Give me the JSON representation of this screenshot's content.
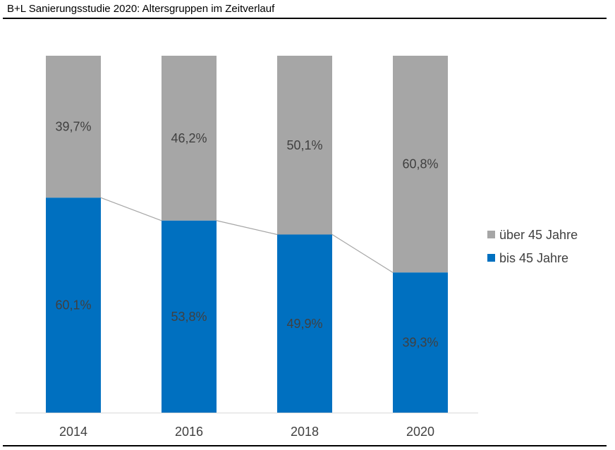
{
  "header": {
    "title": "B+L Sanierungsstudie 2020: Altersgruppen im Zeitverlauf"
  },
  "chart_data": {
    "type": "bar",
    "stacked": true,
    "percent_stacked": true,
    "title": "B+L Sanierungsstudie 2020: Altersgruppen im Zeitverlauf",
    "categories": [
      "2014",
      "2016",
      "2018",
      "2020"
    ],
    "series": [
      {
        "name": "bis 45 Jahre",
        "values": [
          60.1,
          53.8,
          49.9,
          39.3
        ],
        "labels": [
          "60,1%",
          "53,8%",
          "49,9%",
          "39,3%"
        ],
        "color": "#0070C0"
      },
      {
        "name": "über 45 Jahre",
        "values": [
          39.7,
          46.2,
          50.1,
          60.8
        ],
        "labels": [
          "39,7%",
          "46,2%",
          "50,1%",
          "60,8%"
        ],
        "color": "#A6A6A6"
      }
    ],
    "series_lines": true,
    "ylim": [
      0,
      100
    ],
    "grid": false,
    "legend": "right",
    "legend_order": [
      "über 45 Jahre",
      "bis 45 Jahre"
    ],
    "xlabel": "",
    "ylabel": ""
  }
}
